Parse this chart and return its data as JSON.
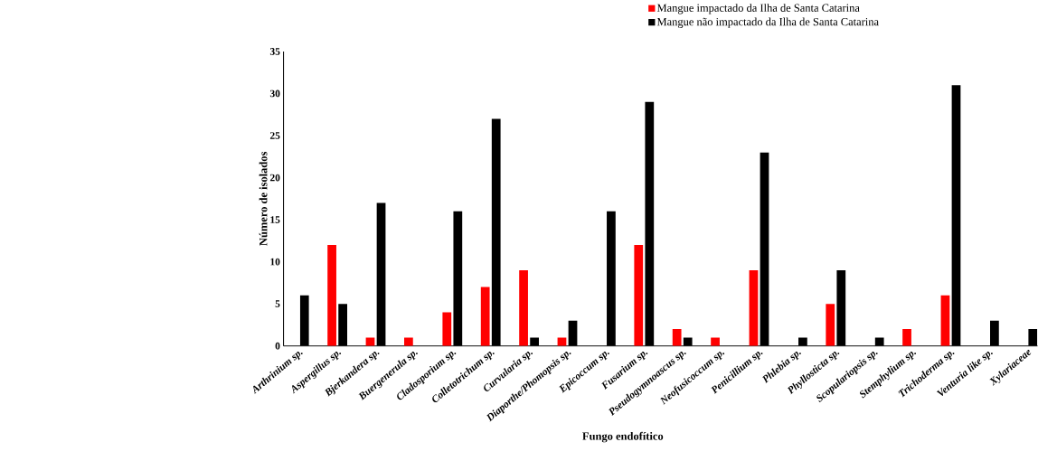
{
  "chart_data": {
    "type": "bar",
    "xlabel": "Fungo endofítico",
    "ylabel": "Número de isolados",
    "categories": [
      "Arthrinium sp.",
      "Aspergillus sp.",
      "Bjerkandera sp.",
      "Buergenerula sp.",
      "Cladosporium sp.",
      "Colletotrichum sp.",
      "Curvularia sp.",
      "Diaporthe/Phomopsis sp.",
      "Epicoccum sp.",
      "Fusarium sp.",
      "Pseudogymnoascus sp.",
      "Neofusicoccum sp.",
      "Penicillium sp.",
      "Phlebia sp.",
      "Phyllosticta sp.",
      "Scopulariopsis  sp.",
      "Stemphylium sp.",
      "Trichoderma sp.",
      "Venturia like sp.",
      "Xylariaceae"
    ],
    "series": [
      {
        "name": "Mangue  impactado da Ilha de Santa Catarina",
        "color": "#ff0000",
        "values": [
          0,
          12,
          1,
          1,
          4,
          7,
          9,
          1,
          0,
          12,
          2,
          1,
          9,
          0,
          5,
          0,
          2,
          6,
          0,
          0
        ]
      },
      {
        "name": "Mangue  não impactado da Ilha de Santa Catarina",
        "color": "#000000",
        "values": [
          6,
          5,
          17,
          0,
          16,
          27,
          1,
          3,
          16,
          29,
          1,
          0,
          23,
          1,
          9,
          1,
          0,
          31,
          3,
          2
        ]
      }
    ],
    "ylim": [
      0,
      35
    ],
    "yticks": [
      0,
      5,
      10,
      15,
      20,
      25,
      30,
      35
    ],
    "grid": false,
    "legend": "top"
  }
}
